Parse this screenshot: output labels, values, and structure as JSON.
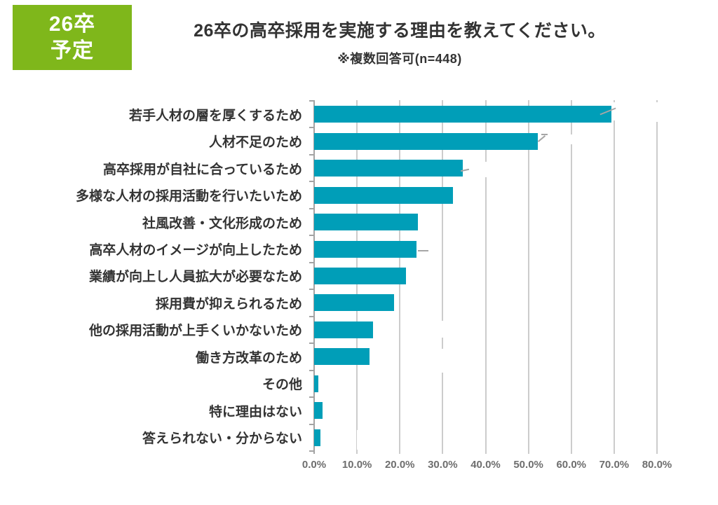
{
  "badge": {
    "lines": [
      "26卒",
      "予定"
    ]
  },
  "header": {
    "title": "26卒の高卒採用を実施する理由を教えてください。",
    "subtitle": "※複数回答可(n=448)"
  },
  "chart_data": {
    "type": "bar",
    "orientation": "horizontal",
    "title": "26卒の高卒採用を実施する理由を教えてください。",
    "subtitle": "※複数回答可(n=448)",
    "n": 448,
    "unit": "%",
    "categories": [
      "若手人材の層を厚くするため",
      "人材不足のため",
      "高卒採用が自社に合っているため",
      "多様な人材の採用活動を行いたいため",
      "社風改善・文化形成のため",
      "高卒人材のイメージが向上したため",
      "業績が向上し人員拡大が必要なため",
      "採用費が抑えられるため",
      "他の採用活動が上手くいかないため",
      "働き方改革のため",
      "その他",
      "特に理由はない",
      "答えられない・分からない"
    ],
    "values": [
      69.3,
      52.1,
      34.6,
      32.4,
      24.2,
      23.9,
      21.4,
      18.7,
      13.8,
      12.9,
      0.9,
      2.0,
      1.4
    ],
    "xlim": [
      0,
      80
    ],
    "x_tick_step": 10,
    "x_tick_labels": [
      "0.0%",
      "10.0%",
      "20.0%",
      "30.0%",
      "40.0%",
      "50.0%",
      "60.0%",
      "70.0%",
      "80.0%"
    ],
    "grid": true,
    "legend": false
  },
  "colors": {
    "bar": "#009EB8",
    "badge_background": "#7FB71B",
    "badge_text": "#FFFFFF",
    "grid": "#CCCCCC",
    "axis": "#A3A3A3",
    "tick_label": "#6E6E6E",
    "text": "#333333"
  }
}
